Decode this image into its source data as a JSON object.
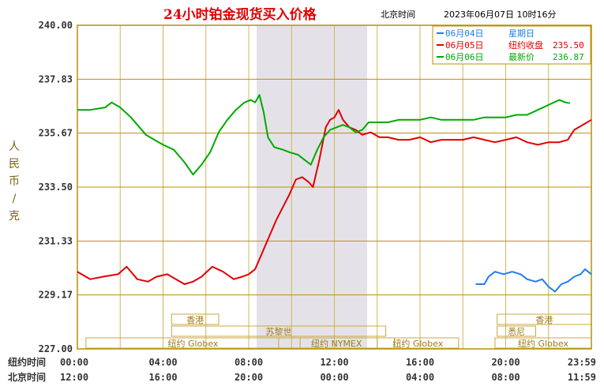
{
  "chart_data": {
    "type": "line",
    "title": "24小时铂金现货买入价格",
    "timezone_label": "北京时间",
    "datetime": "2023年06月07日 10时16分",
    "ylabel": "人民币/克",
    "ylim": [
      227.0,
      240.0
    ],
    "yticks": [
      "240.00",
      "237.83",
      "235.67",
      "233.50",
      "231.33",
      "229.17",
      "227.00"
    ],
    "row_labels": {
      "ny": "纽约时间",
      "bj": "北京时间"
    },
    "x_ticks_ny": [
      "00:00",
      "04:00",
      "08:00",
      "12:00",
      "16:00",
      "20:00",
      "23:59"
    ],
    "x_ticks_bj": [
      "12:00",
      "16:00",
      "20:00",
      "00:00",
      "04:00",
      "08:00",
      "11:59"
    ],
    "sessions": {
      "hk": "香港",
      "zurich": "苏黎世",
      "sydney": "悉尼",
      "ny_globex": "纽约 Globex",
      "ny_nymex": "纽约 NYMEX"
    },
    "legend": [
      {
        "date": "06月04日",
        "label": "星期日",
        "value": "",
        "color": "#1e7ef0"
      },
      {
        "date": "06月05日",
        "label": "纽约收盘",
        "value": "235.50",
        "color": "#e00000"
      },
      {
        "date": "06月06日",
        "label": "最新价",
        "value": "236.87",
        "color": "#00a800"
      }
    ],
    "series": [
      {
        "color": "#1e7ef0",
        "points": [
          [
            18.6,
            229.6
          ],
          [
            19.0,
            229.6
          ],
          [
            19.2,
            229.9
          ],
          [
            19.5,
            230.1
          ],
          [
            19.9,
            230.0
          ],
          [
            20.3,
            230.1
          ],
          [
            20.7,
            230.0
          ],
          [
            21.0,
            229.8
          ],
          [
            21.4,
            229.7
          ],
          [
            21.7,
            229.8
          ],
          [
            22.0,
            229.5
          ],
          [
            22.3,
            229.3
          ],
          [
            22.6,
            229.6
          ],
          [
            22.9,
            229.7
          ],
          [
            23.2,
            229.9
          ],
          [
            23.5,
            230.0
          ],
          [
            23.7,
            230.2
          ],
          [
            24.0,
            230.0
          ]
        ]
      },
      {
        "color": "#e00000",
        "points": [
          [
            0.0,
            230.1
          ],
          [
            0.6,
            229.8
          ],
          [
            1.2,
            229.9
          ],
          [
            1.9,
            230.0
          ],
          [
            2.3,
            230.3
          ],
          [
            2.8,
            229.8
          ],
          [
            3.3,
            229.7
          ],
          [
            3.7,
            229.9
          ],
          [
            4.2,
            230.0
          ],
          [
            4.6,
            229.8
          ],
          [
            5.0,
            229.6
          ],
          [
            5.4,
            229.7
          ],
          [
            5.8,
            229.9
          ],
          [
            6.3,
            230.3
          ],
          [
            6.8,
            230.1
          ],
          [
            7.3,
            229.8
          ],
          [
            7.7,
            229.9
          ],
          [
            8.0,
            230.0
          ],
          [
            8.3,
            230.2
          ],
          [
            8.7,
            231.0
          ],
          [
            9.0,
            231.6
          ],
          [
            9.3,
            232.2
          ],
          [
            9.6,
            232.7
          ],
          [
            9.9,
            233.2
          ],
          [
            10.2,
            233.8
          ],
          [
            10.5,
            233.9
          ],
          [
            10.8,
            233.7
          ],
          [
            11.0,
            233.5
          ],
          [
            11.3,
            234.6
          ],
          [
            11.6,
            235.9
          ],
          [
            11.8,
            236.2
          ],
          [
            12.0,
            236.3
          ],
          [
            12.2,
            236.6
          ],
          [
            12.4,
            236.2
          ],
          [
            12.7,
            235.9
          ],
          [
            13.0,
            235.8
          ],
          [
            13.3,
            235.6
          ],
          [
            13.7,
            235.7
          ],
          [
            14.1,
            235.5
          ],
          [
            14.5,
            235.5
          ],
          [
            15.0,
            235.4
          ],
          [
            15.5,
            235.4
          ],
          [
            16.0,
            235.5
          ],
          [
            16.5,
            235.3
          ],
          [
            17.0,
            235.4
          ],
          [
            17.5,
            235.4
          ],
          [
            18.0,
            235.4
          ],
          [
            18.5,
            235.5
          ],
          [
            19.0,
            235.4
          ],
          [
            19.5,
            235.3
          ],
          [
            20.0,
            235.4
          ],
          [
            20.5,
            235.5
          ],
          [
            21.0,
            235.3
          ],
          [
            21.5,
            235.2
          ],
          [
            22.0,
            235.3
          ],
          [
            22.5,
            235.3
          ],
          [
            22.9,
            235.4
          ],
          [
            23.2,
            235.8
          ],
          [
            23.6,
            236.0
          ],
          [
            24.0,
            236.2
          ]
        ]
      },
      {
        "color": "#00a800",
        "points": [
          [
            0.0,
            236.6
          ],
          [
            0.6,
            236.6
          ],
          [
            1.3,
            236.7
          ],
          [
            1.6,
            236.9
          ],
          [
            2.0,
            236.7
          ],
          [
            2.5,
            236.3
          ],
          [
            2.9,
            235.9
          ],
          [
            3.2,
            235.6
          ],
          [
            3.6,
            235.4
          ],
          [
            4.0,
            235.2
          ],
          [
            4.5,
            235.0
          ],
          [
            5.0,
            234.5
          ],
          [
            5.4,
            234.0
          ],
          [
            5.8,
            234.4
          ],
          [
            6.2,
            234.9
          ],
          [
            6.6,
            235.7
          ],
          [
            7.0,
            236.2
          ],
          [
            7.4,
            236.6
          ],
          [
            7.8,
            236.9
          ],
          [
            8.1,
            237.0
          ],
          [
            8.3,
            236.9
          ],
          [
            8.5,
            237.2
          ],
          [
            8.7,
            236.5
          ],
          [
            8.9,
            235.5
          ],
          [
            9.2,
            235.1
          ],
          [
            9.6,
            235.0
          ],
          [
            9.9,
            234.9
          ],
          [
            10.3,
            234.8
          ],
          [
            10.6,
            234.6
          ],
          [
            10.9,
            234.4
          ],
          [
            11.2,
            235.0
          ],
          [
            11.5,
            235.5
          ],
          [
            11.8,
            235.8
          ],
          [
            12.1,
            235.9
          ],
          [
            12.4,
            236.0
          ],
          [
            12.7,
            235.9
          ],
          [
            13.0,
            235.7
          ],
          [
            13.3,
            235.8
          ],
          [
            13.6,
            236.1
          ],
          [
            14.0,
            236.1
          ],
          [
            14.5,
            236.1
          ],
          [
            15.0,
            236.2
          ],
          [
            15.5,
            236.2
          ],
          [
            16.0,
            236.2
          ],
          [
            16.5,
            236.3
          ],
          [
            17.0,
            236.2
          ],
          [
            17.5,
            236.2
          ],
          [
            18.0,
            236.2
          ],
          [
            18.5,
            236.2
          ],
          [
            19.0,
            236.3
          ],
          [
            19.5,
            236.3
          ],
          [
            20.0,
            236.3
          ],
          [
            20.5,
            236.4
          ],
          [
            21.0,
            236.4
          ],
          [
            21.5,
            236.6
          ],
          [
            22.0,
            236.8
          ],
          [
            22.5,
            237.0
          ],
          [
            22.8,
            236.9
          ],
          [
            23.0,
            236.87
          ]
        ]
      }
    ]
  }
}
